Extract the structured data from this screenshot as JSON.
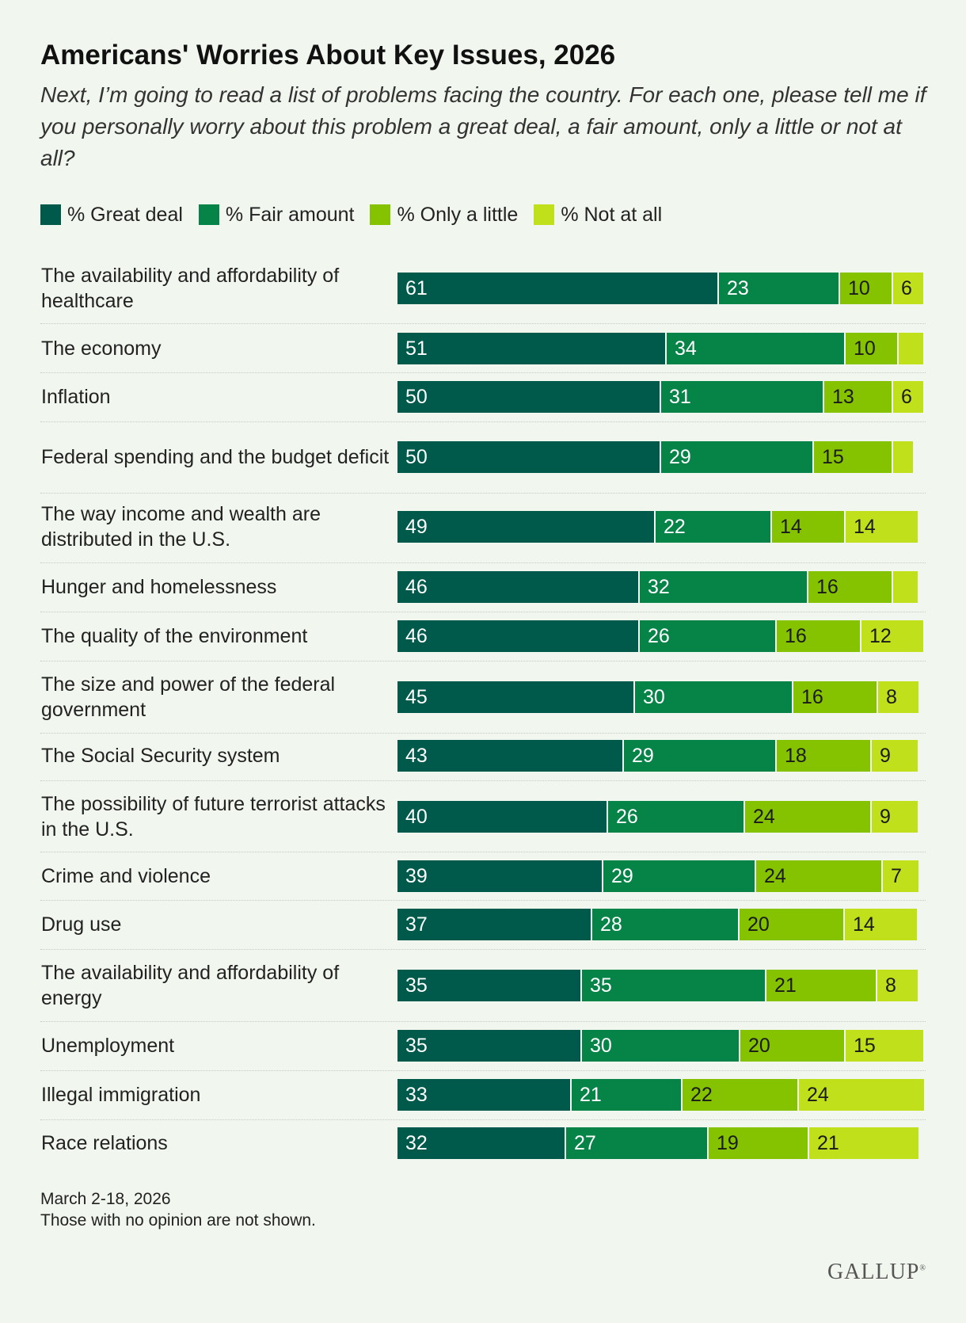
{
  "header": {
    "title": "Americans' Worries About Key Issues, 2026",
    "subtitle": "Next, I’m going to read a list of problems facing the country. For each one, please tell me if you personally worry about this problem a great deal, a fair amount, only a little or not at all?"
  },
  "footer": {
    "date": "March 2-18, 2026",
    "note": "Those with no opinion are not shown.",
    "brand": "GALLUP"
  },
  "colors": {
    "great_deal": "#005a4c",
    "fair_amount": "#068347",
    "only_a_little": "#85c200",
    "not_at_all": "#c0e01c",
    "background": "#f1f7ef"
  },
  "chart_data": {
    "type": "bar",
    "orientation": "horizontal",
    "stacked": true,
    "xlim": [
      0,
      100
    ],
    "legend_position": "top-left",
    "grid": false,
    "categories": [
      "The availability and affordability of healthcare",
      "The economy",
      "Inflation",
      "Federal spending and the budget deficit",
      "The way income and wealth are distributed in the U.S.",
      "Hunger and homelessness",
      "The quality of the environment",
      "The size and power of the federal government",
      "The Social Security system",
      "The possibility of future terrorist attacks in the U.S.",
      "Crime and violence",
      "Drug use",
      "The availability and affordability of energy",
      "Unemployment",
      "Illegal immigration",
      "Race relations"
    ],
    "series": [
      {
        "name": "% Great deal",
        "color": "#005a4c",
        "label_color": "#ffffff",
        "values": [
          61,
          51,
          50,
          50,
          49,
          46,
          46,
          45,
          43,
          40,
          39,
          37,
          35,
          35,
          33,
          32
        ],
        "labels": [
          "61",
          "51",
          "50",
          "50",
          "49",
          "46",
          "46",
          "45",
          "43",
          "40",
          "39",
          "37",
          "35",
          "35",
          "33",
          "32"
        ]
      },
      {
        "name": "% Fair amount",
        "color": "#068347",
        "label_color": "#ffffff",
        "values": [
          23,
          34,
          31,
          29,
          22,
          32,
          26,
          30,
          29,
          26,
          29,
          28,
          35,
          30,
          21,
          27
        ],
        "labels": [
          "23",
          "34",
          "31",
          "29",
          "22",
          "32",
          "26",
          "30",
          "29",
          "26",
          "29",
          "28",
          "35",
          "30",
          "21",
          "27"
        ]
      },
      {
        "name": "% Only a little",
        "color": "#85c200",
        "label_color": "#1a1a1a",
        "values": [
          10,
          10,
          13,
          15,
          14,
          16,
          16,
          16,
          18,
          24,
          24,
          20,
          21,
          20,
          22,
          19
        ],
        "labels": [
          "10",
          "10",
          "13",
          "15",
          "14",
          "16",
          "16",
          "16",
          "18",
          "24",
          "24",
          "20",
          "21",
          "20",
          "22",
          "19"
        ]
      },
      {
        "name": "% Not at all",
        "color": "#c0e01c",
        "label_color": "#1a1a1a",
        "values": [
          6,
          5,
          6,
          4,
          14,
          5,
          12,
          8,
          9,
          9,
          7,
          14,
          8,
          15,
          24,
          21
        ],
        "labels": [
          "6",
          "",
          "6",
          "",
          "14",
          "",
          "12",
          "8",
          "9",
          "9",
          "7",
          "14",
          "8",
          "15",
          "24",
          "21"
        ]
      }
    ]
  }
}
